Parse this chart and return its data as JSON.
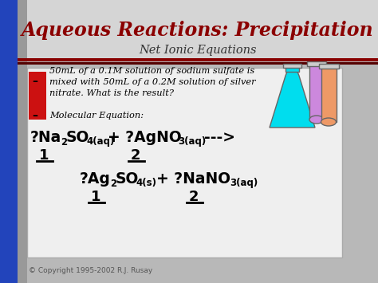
{
  "title": "Aqueous Reactions: Precipitation",
  "subtitle": "Net Ionic Equations",
  "title_color": "#8B0000",
  "subtitle_color": "#333333",
  "bg_color": "#B8B8B8",
  "header_bg": "#D5D5D5",
  "content_bg": "#E5E5E5",
  "left_bar_blue": "#2244BB",
  "left_bar_red": "#CC1111",
  "bullet1": "50mL of a 0.1M solution of sodium sulfate is\nmixed with 50mL of a 0.2M solution of silver\nnitrate. What is the result?",
  "bullet2": "Molecular Equation:",
  "copyright": "© Copyright 1995-2002 R.J. Rusay",
  "flask_cyan": "#00DDEE",
  "tube_purple": "#CC88DD",
  "tube_orange": "#EE9966",
  "outline": "#666666"
}
